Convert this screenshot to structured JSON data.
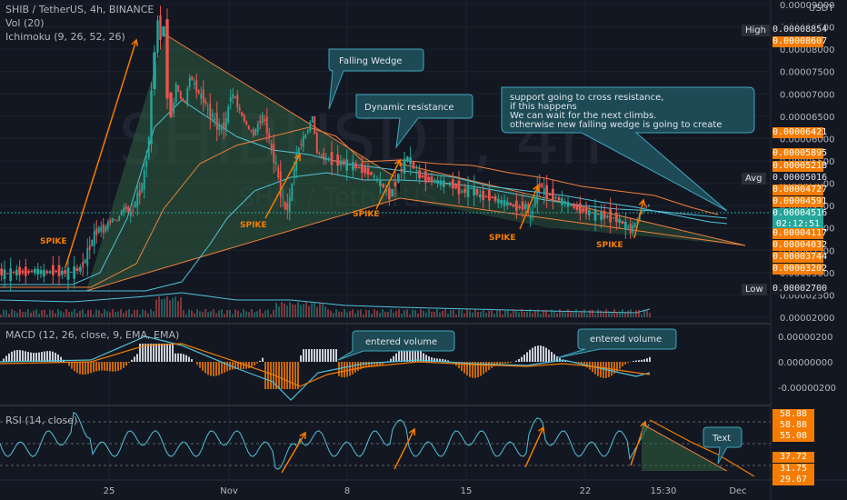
{
  "header": {
    "title": "SHIB / TetherUS, 4h, BINANCE",
    "vol": "Vol (20)",
    "ichimoku": "Ichimoku (9, 26, 52, 26)",
    "macd": "MACD (12, 26, close, 9, EMA, EMA)",
    "rsi": "RSI (14, close)"
  },
  "watermark": {
    "big": "SHIBUSDT, 4h",
    "small": "SHIB / TetherUS"
  },
  "currency": "USDT",
  "price_axis": {
    "ticks": [
      "0.00009000",
      "0.00008500",
      "0.00008000",
      "0.00007500",
      "0.00007000",
      "0.00006500",
      "0.00006000",
      "0.00005500",
      "0.00005000",
      "0.00004500",
      "0.00004000",
      "0.00003500",
      "0.00003000",
      "0.00002500",
      "0.00002000"
    ],
    "tags": [
      {
        "label": "High",
        "value": "0.00008854",
        "color": "#1c1f2a",
        "text": "#e0e3eb"
      },
      {
        "label": "",
        "value": "0.00008607",
        "color": "#f57c00",
        "text": "#ffffff"
      },
      {
        "label": "",
        "value": "0.00006421",
        "color": "#f57c00",
        "text": "#ffffff"
      },
      {
        "label": "",
        "value": "0.00005895",
        "color": "#f57c00",
        "text": "#ffffff"
      },
      {
        "label": "",
        "value": "0.00005218",
        "color": "#f57c00",
        "text": "#ffffff"
      },
      {
        "label": "Avg",
        "value": "0.00005016",
        "color": "#1c1f2a",
        "text": "#e0e3eb"
      },
      {
        "label": "",
        "value": "0.00004727",
        "color": "#f57c00",
        "text": "#ffffff"
      },
      {
        "label": "",
        "value": "0.00004591",
        "color": "#f57c00",
        "text": "#ffffff"
      },
      {
        "label": "",
        "value": "0.00004516",
        "color": "#26a69a",
        "text": "#ffffff"
      },
      {
        "label": "",
        "value": "02:12:51",
        "color": "#26a69a",
        "text": "#ffffff"
      },
      {
        "label": "",
        "value": "0.00004117",
        "color": "#f57c00",
        "text": "#ffffff"
      },
      {
        "label": "",
        "value": "0.00004032",
        "color": "#f57c00",
        "text": "#ffffff"
      },
      {
        "label": "",
        "value": "0.00003744",
        "color": "#f57c00",
        "text": "#ffffff"
      },
      {
        "label": "",
        "value": "0.00003202",
        "color": "#f57c00",
        "text": "#ffffff"
      },
      {
        "label": "Low",
        "value": "0.00002700",
        "color": "#1c1f2a",
        "text": "#e0e3eb"
      }
    ]
  },
  "macd_axis": [
    "0.00000200",
    "0.00000000",
    "-0.00000200"
  ],
  "rsi_axis": {
    "tags": [
      {
        "value": "58.88",
        "color": "#f57c00"
      },
      {
        "value": "58.88",
        "color": "#f57c00"
      },
      {
        "value": "55.08",
        "color": "#f57c00"
      },
      {
        "value": "37.72",
        "color": "#f57c00"
      },
      {
        "value": "31.75",
        "color": "#f57c00"
      },
      {
        "value": "29.67",
        "color": "#f57c00"
      }
    ]
  },
  "time_axis": {
    "labels": [
      "25",
      "Nov",
      "8",
      "15",
      "22",
      "15:30",
      "Dec"
    ]
  },
  "annotations": {
    "falling_wedge": "Falling Wedge",
    "dynamic_resistance": "Dynamic resistance",
    "note_lines": [
      "support going to cross resistance,",
      "if this happens",
      "We can wait for the next climbs.",
      "otherwise new falling wedge is going to create"
    ],
    "entered_volume_1": "entered volume",
    "entered_volume_2": "entered volume",
    "text_box": "Text",
    "spike": "SPIKE"
  },
  "colors": {
    "bg": "#131722",
    "up": "#26a69a",
    "down": "#ef5350",
    "orange": "#f57c00",
    "cyan": "#4fc3d9",
    "wedge_fill": "#3a6b4a",
    "callout": "#1d4a55"
  },
  "chart_data": {
    "type": "candlestick",
    "symbol": "SHIB / TetherUS",
    "timeframe": "4h",
    "exchange": "BINANCE",
    "x_labels": [
      "25",
      "Nov",
      "8",
      "15",
      "22",
      "Dec"
    ],
    "price_high": 8.854e-05,
    "price_low": 2.7e-05,
    "last_price": 4.516e-05,
    "avg": 5.016e-05,
    "close_path": [
      [
        0,
        3e-05
      ],
      [
        10,
        2.98e-05
      ],
      [
        20,
        3.02e-05
      ],
      [
        30,
        3e-05
      ],
      [
        40,
        3.05e-05
      ],
      [
        50,
        3e-05
      ],
      [
        60,
        3.03e-05
      ],
      [
        70,
        3e-05
      ],
      [
        80,
        3.02e-05
      ],
      [
        90,
        3.1e-05
      ],
      [
        95,
        3.3e-05
      ],
      [
        100,
        3.6e-05
      ],
      [
        105,
        3.85e-05
      ],
      [
        110,
        4e-05
      ],
      [
        115,
        3.95e-05
      ],
      [
        120,
        4.1e-05
      ],
      [
        125,
        4.2e-05
      ],
      [
        130,
        4.15e-05
      ],
      [
        135,
        4.4e-05
      ],
      [
        140,
        4.45e-05
      ],
      [
        145,
        4.3e-05
      ],
      [
        150,
        4.6e-05
      ],
      [
        155,
        4.8e-05
      ],
      [
        160,
        5.2e-05
      ],
      [
        165,
        6e-05
      ],
      [
        168,
        7e-05
      ],
      [
        172,
        8e-05
      ],
      [
        175,
        8.6e-05
      ],
      [
        178,
        8.3e-05
      ],
      [
        182,
        8.5e-05
      ],
      [
        186,
        7e-05
      ],
      [
        190,
        6.5e-05
      ],
      [
        195,
        7.2e-05
      ],
      [
        200,
        6.9e-05
      ],
      [
        205,
        6.8e-05
      ],
      [
        210,
        7.4e-05
      ],
      [
        215,
        7.2e-05
      ],
      [
        220,
        7e-05
      ],
      [
        225,
        6.9e-05
      ],
      [
        230,
        6.6e-05
      ],
      [
        235,
        6.5e-05
      ],
      [
        240,
        6.3e-05
      ],
      [
        245,
        6.2e-05
      ],
      [
        250,
        6.4e-05
      ],
      [
        255,
        7e-05
      ],
      [
        260,
        6.9e-05
      ],
      [
        265,
        6.6e-05
      ],
      [
        270,
        6.4e-05
      ],
      [
        275,
        6.2e-05
      ],
      [
        280,
        6.1e-05
      ],
      [
        285,
        6.3e-05
      ],
      [
        290,
        6.5e-05
      ],
      [
        295,
        6.2e-05
      ],
      [
        300,
        5.7e-05
      ],
      [
        305,
        5.4e-05
      ],
      [
        310,
        4.8e-05
      ],
      [
        315,
        4.4e-05
      ],
      [
        320,
        4.6e-05
      ],
      [
        325,
        5.4e-05
      ],
      [
        330,
        5.8e-05
      ],
      [
        335,
        6e-05
      ],
      [
        340,
        6.2e-05
      ],
      [
        345,
        6.5e-05
      ],
      [
        350,
        5.7e-05
      ],
      [
        355,
        5.6e-05
      ],
      [
        360,
        5.55e-05
      ],
      [
        370,
        5.5e-05
      ],
      [
        380,
        5.45e-05
      ],
      [
        390,
        5.4e-05
      ],
      [
        400,
        5.3e-05
      ],
      [
        410,
        5.2e-05
      ],
      [
        420,
        5e-05
      ],
      [
        430,
        4.7e-05
      ],
      [
        440,
        5.2e-05
      ],
      [
        450,
        5.6e-05
      ],
      [
        460,
        5.2e-05
      ],
      [
        470,
        5.1e-05
      ],
      [
        480,
        5.05e-05
      ],
      [
        490,
        5e-05
      ],
      [
        500,
        4.95e-05
      ],
      [
        510,
        4.8e-05
      ],
      [
        520,
        4.9e-05
      ],
      [
        530,
        4.7e-05
      ],
      [
        540,
        4.7e-05
      ],
      [
        550,
        4.6e-05
      ],
      [
        560,
        4.55e-05
      ],
      [
        570,
        4.45e-05
      ],
      [
        580,
        4.5e-05
      ],
      [
        585,
        4.2e-05
      ],
      [
        590,
        4.7e-05
      ],
      [
        595,
        5e-05
      ],
      [
        600,
        4.8e-05
      ],
      [
        610,
        4.7e-05
      ],
      [
        620,
        4.6e-05
      ],
      [
        630,
        4.5e-05
      ],
      [
        640,
        4.4e-05
      ],
      [
        650,
        4.35e-05
      ],
      [
        660,
        4.3e-05
      ],
      [
        670,
        4.25e-05
      ],
      [
        680,
        4.2e-05
      ],
      [
        690,
        4.05e-05
      ],
      [
        695,
        3.95e-05
      ],
      [
        700,
        4.1e-05
      ],
      [
        705,
        4.3e-05
      ],
      [
        710,
        4.45e-05
      ],
      [
        715,
        4.52e-05
      ]
    ]
  }
}
